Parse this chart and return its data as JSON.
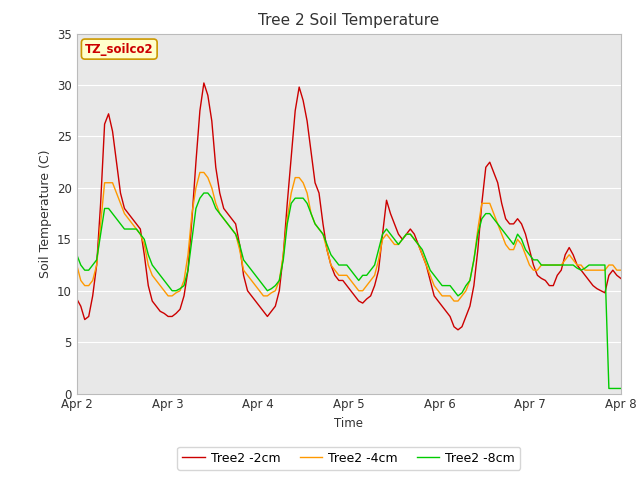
{
  "title": "Tree 2 Soil Temperature",
  "ylabel": "Soil Temperature (C)",
  "xlabel": "Time",
  "watermark": "TZ_soilco2",
  "ylim": [
    0,
    35
  ],
  "fig_bg": "#ffffff",
  "plot_bg": "#e8e8e8",
  "legend": [
    "Tree2 -2cm",
    "Tree2 -4cm",
    "Tree2 -8cm"
  ],
  "legend_colors": [
    "#cc0000",
    "#ff9900",
    "#00cc00"
  ],
  "grid_color": "#ffffff",
  "x_ticks": [
    "Apr 2",
    "Apr 3",
    "Apr 4",
    "Apr 5",
    "Apr 6",
    "Apr 7",
    "Apr 8"
  ],
  "x_tick_positions": [
    0,
    24,
    48,
    72,
    96,
    120,
    144
  ],
  "series_2cm": [
    9.2,
    8.5,
    7.2,
    7.5,
    9.5,
    12.5,
    18.5,
    26.2,
    27.2,
    25.5,
    22.5,
    19.5,
    18.0,
    17.5,
    17.0,
    16.5,
    16.0,
    13.5,
    10.5,
    9.0,
    8.5,
    8.0,
    7.8,
    7.5,
    7.5,
    7.8,
    8.2,
    9.5,
    12.0,
    17.0,
    22.5,
    27.5,
    30.2,
    29.0,
    26.5,
    22.0,
    19.5,
    18.0,
    17.5,
    17.0,
    16.5,
    14.5,
    11.5,
    10.0,
    9.5,
    9.0,
    8.5,
    8.0,
    7.5,
    8.0,
    8.5,
    10.0,
    13.5,
    18.5,
    23.0,
    27.5,
    29.8,
    28.5,
    26.5,
    23.5,
    20.5,
    19.5,
    16.5,
    14.0,
    12.5,
    11.5,
    11.0,
    11.0,
    10.5,
    10.0,
    9.5,
    9.0,
    8.8,
    9.2,
    9.5,
    10.5,
    12.0,
    15.5,
    18.8,
    17.5,
    16.5,
    15.5,
    15.0,
    15.5,
    16.0,
    15.5,
    14.5,
    13.5,
    12.5,
    11.0,
    9.5,
    9.0,
    8.5,
    8.0,
    7.5,
    6.5,
    6.2,
    6.5,
    7.5,
    8.5,
    10.5,
    14.0,
    18.5,
    22.0,
    22.5,
    21.5,
    20.5,
    18.5,
    17.0,
    16.5,
    16.5,
    17.0,
    16.5,
    15.5,
    14.0,
    12.5,
    11.5,
    11.2,
    11.0,
    10.5,
    10.5,
    11.5,
    12.0,
    13.5,
    14.2,
    13.5,
    12.5,
    12.0,
    11.5,
    11.0,
    10.5,
    10.2,
    10.0,
    9.8,
    11.5,
    12.0,
    11.5,
    11.2
  ],
  "series_4cm": [
    12.5,
    11.0,
    10.5,
    10.5,
    11.0,
    12.5,
    16.5,
    20.5,
    20.5,
    20.5,
    19.5,
    18.5,
    17.5,
    17.0,
    16.5,
    16.0,
    15.5,
    14.5,
    12.5,
    11.5,
    11.0,
    10.5,
    10.0,
    9.5,
    9.5,
    9.8,
    10.0,
    11.0,
    13.5,
    17.5,
    20.0,
    21.5,
    21.5,
    21.0,
    20.0,
    18.5,
    17.5,
    17.0,
    16.5,
    16.0,
    15.5,
    14.0,
    12.0,
    11.5,
    11.0,
    10.5,
    10.0,
    9.5,
    9.5,
    9.8,
    10.0,
    11.0,
    13.5,
    17.0,
    19.5,
    21.0,
    21.0,
    20.5,
    19.5,
    17.5,
    16.5,
    16.0,
    15.5,
    14.0,
    12.5,
    12.0,
    11.5,
    11.5,
    11.5,
    11.0,
    10.5,
    10.0,
    10.0,
    10.5,
    11.0,
    11.5,
    13.0,
    15.0,
    15.5,
    15.0,
    14.5,
    14.5,
    15.0,
    15.5,
    15.5,
    15.0,
    14.5,
    13.5,
    12.5,
    11.5,
    10.5,
    10.0,
    9.5,
    9.5,
    9.5,
    9.0,
    9.0,
    9.5,
    10.0,
    11.0,
    13.0,
    16.0,
    18.5,
    18.5,
    18.5,
    17.5,
    16.5,
    15.5,
    14.5,
    14.0,
    14.0,
    15.0,
    14.5,
    13.5,
    12.5,
    12.0,
    12.0,
    12.5,
    12.5,
    12.5,
    12.5,
    12.5,
    12.5,
    13.0,
    13.5,
    13.0,
    12.5,
    12.5,
    12.0,
    12.0,
    12.0,
    12.0,
    12.0,
    12.0,
    12.5,
    12.5,
    12.0,
    12.0
  ],
  "series_8cm": [
    13.5,
    12.5,
    12.0,
    12.0,
    12.5,
    13.0,
    15.5,
    18.0,
    18.0,
    17.5,
    17.0,
    16.5,
    16.0,
    16.0,
    16.0,
    16.0,
    15.5,
    15.0,
    13.5,
    12.5,
    12.0,
    11.5,
    11.0,
    10.5,
    10.0,
    10.0,
    10.2,
    10.5,
    12.0,
    15.0,
    18.0,
    19.0,
    19.5,
    19.5,
    19.0,
    18.0,
    17.5,
    17.0,
    16.5,
    16.0,
    15.5,
    14.5,
    13.0,
    12.5,
    12.0,
    11.5,
    11.0,
    10.5,
    10.0,
    10.2,
    10.5,
    11.0,
    13.0,
    16.5,
    18.5,
    19.0,
    19.0,
    19.0,
    18.5,
    17.5,
    16.5,
    16.0,
    15.5,
    14.5,
    13.5,
    13.0,
    12.5,
    12.5,
    12.5,
    12.0,
    11.5,
    11.0,
    11.5,
    11.5,
    12.0,
    12.5,
    14.0,
    15.5,
    16.0,
    15.5,
    15.0,
    14.5,
    15.0,
    15.5,
    15.5,
    15.0,
    14.5,
    14.0,
    13.0,
    12.0,
    11.5,
    11.0,
    10.5,
    10.5,
    10.5,
    10.0,
    9.5,
    9.8,
    10.5,
    11.0,
    13.0,
    15.5,
    17.0,
    17.5,
    17.5,
    17.0,
    16.5,
    16.0,
    15.5,
    15.0,
    14.5,
    15.5,
    15.0,
    14.0,
    13.5,
    13.0,
    13.0,
    12.5,
    12.5,
    12.5,
    12.5,
    12.5,
    12.5,
    12.5,
    12.5,
    12.5,
    12.2,
    12.0,
    12.2,
    12.5,
    12.5,
    12.5,
    12.5,
    12.5,
    0.5,
    0.5,
    0.5,
    0.5
  ]
}
